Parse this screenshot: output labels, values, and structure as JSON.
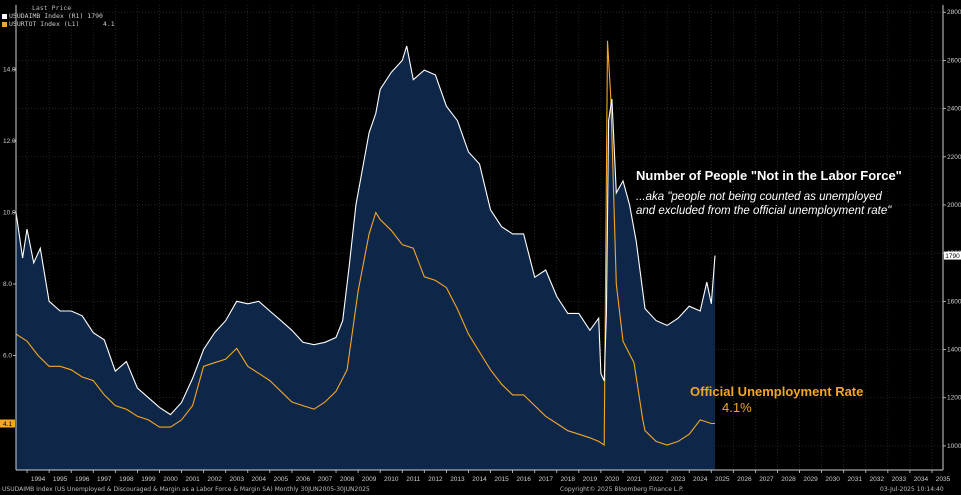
{
  "legend": {
    "header": "Last Price",
    "series": [
      {
        "label": "USUDAIMB Index (R1)",
        "value": "1790",
        "color": "#ffffff"
      },
      {
        "label": "USURTOT Index (L1)",
        "value": "4.1",
        "color": "#f5a623"
      }
    ]
  },
  "annotations": {
    "title": "Number of People \"Not in the Labor Force\"",
    "subtitle_line1": "...aka \"people not being counted as unemployed",
    "subtitle_line2": "and excluded from the official unemployment rate\"",
    "rate_label": "Official Unemployment Rate",
    "rate_value": "4.1%"
  },
  "footer": {
    "left": "USUDAIMB Index (US Unemployed & Discouraged & Margin as a Labor Force & Margin SA)  Monthly 30JUN2005-30JUN2025",
    "center": "Copyright© 2025 Bloomberg Finance L.P.",
    "right": "03-Jul-2025 10:14:40"
  },
  "chart_data": {
    "type": "line",
    "x_ticks": [
      "1994",
      "1995",
      "1996",
      "1997",
      "1998",
      "1999",
      "2000",
      "2001",
      "2002",
      "2003",
      "2004",
      "2005",
      "2006",
      "2007",
      "2008",
      "2009",
      "2010",
      "2011",
      "2012",
      "2013",
      "2014",
      "2015",
      "2016",
      "2017",
      "2018",
      "2019",
      "2020",
      "2021",
      "2022",
      "2023",
      "2024",
      "2025",
      "2026",
      "2027",
      "2028",
      "2029",
      "2030",
      "2031",
      "2032",
      "2033",
      "2034",
      "2035"
    ],
    "xlim": [
      1993.5,
      2035.5
    ],
    "left_axis": {
      "ticks": [
        "6.0",
        "8.0",
        "10.0",
        "12.0",
        "14.0"
      ],
      "ylim": [
        2.8,
        15.8
      ]
    },
    "right_axis": {
      "ticks": [
        "1000",
        "1200",
        "1400",
        "1600",
        "1800",
        "2000",
        "2200",
        "2400",
        "2600",
        "2800"
      ],
      "ylim": [
        900,
        2830
      ]
    },
    "series": [
      {
        "name": "USUDAIMB Index",
        "axis": "right",
        "color": "#ffffff",
        "fill": "#0e2748",
        "last_value": "1790",
        "points": [
          [
            1993.5,
            1970
          ],
          [
            1993.8,
            1780
          ],
          [
            1994.0,
            1900
          ],
          [
            1994.3,
            1760
          ],
          [
            1994.6,
            1820
          ],
          [
            1995.0,
            1600
          ],
          [
            1995.5,
            1560
          ],
          [
            1996.0,
            1560
          ],
          [
            1996.5,
            1540
          ],
          [
            1997.0,
            1470
          ],
          [
            1997.5,
            1440
          ],
          [
            1998.0,
            1310
          ],
          [
            1998.5,
            1350
          ],
          [
            1999.0,
            1240
          ],
          [
            1999.5,
            1200
          ],
          [
            2000.0,
            1160
          ],
          [
            2000.5,
            1130
          ],
          [
            2001.0,
            1180
          ],
          [
            2001.5,
            1280
          ],
          [
            2002.0,
            1400
          ],
          [
            2002.5,
            1470
          ],
          [
            2003.0,
            1520
          ],
          [
            2003.5,
            1600
          ],
          [
            2004.0,
            1590
          ],
          [
            2004.5,
            1600
          ],
          [
            2005.0,
            1560
          ],
          [
            2005.5,
            1520
          ],
          [
            2006.0,
            1480
          ],
          [
            2006.5,
            1430
          ],
          [
            2007.0,
            1420
          ],
          [
            2007.5,
            1430
          ],
          [
            2008.0,
            1450
          ],
          [
            2008.3,
            1520
          ],
          [
            2008.6,
            1750
          ],
          [
            2008.9,
            2000
          ],
          [
            2009.2,
            2150
          ],
          [
            2009.5,
            2300
          ],
          [
            2009.8,
            2380
          ],
          [
            2010.0,
            2480
          ],
          [
            2010.5,
            2550
          ],
          [
            2011.0,
            2600
          ],
          [
            2011.2,
            2660
          ],
          [
            2011.5,
            2520
          ],
          [
            2012.0,
            2560
          ],
          [
            2012.5,
            2540
          ],
          [
            2013.0,
            2410
          ],
          [
            2013.5,
            2350
          ],
          [
            2014.0,
            2220
          ],
          [
            2014.5,
            2170
          ],
          [
            2015.0,
            1980
          ],
          [
            2015.5,
            1910
          ],
          [
            2016.0,
            1880
          ],
          [
            2016.5,
            1880
          ],
          [
            2017.0,
            1700
          ],
          [
            2017.5,
            1730
          ],
          [
            2018.0,
            1620
          ],
          [
            2018.5,
            1550
          ],
          [
            2019.0,
            1550
          ],
          [
            2019.5,
            1480
          ],
          [
            2019.9,
            1530
          ],
          [
            2020.0,
            1300
          ],
          [
            2020.15,
            1270
          ],
          [
            2020.25,
            1550
          ],
          [
            2020.35,
            2350
          ],
          [
            2020.5,
            2440
          ],
          [
            2020.7,
            2050
          ],
          [
            2021.0,
            2100
          ],
          [
            2021.3,
            2000
          ],
          [
            2021.6,
            1850
          ],
          [
            2022.0,
            1570
          ],
          [
            2022.5,
            1520
          ],
          [
            2023.0,
            1500
          ],
          [
            2023.5,
            1530
          ],
          [
            2024.0,
            1580
          ],
          [
            2024.5,
            1560
          ],
          [
            2024.8,
            1680
          ],
          [
            2025.0,
            1590
          ],
          [
            2025.17,
            1790
          ]
        ]
      },
      {
        "name": "USURTOT Index",
        "axis": "left",
        "color": "#f5a623",
        "last_value": "4.1",
        "points": [
          [
            1993.5,
            6.6
          ],
          [
            1994.0,
            6.4
          ],
          [
            1994.5,
            6.0
          ],
          [
            1995.0,
            5.7
          ],
          [
            1995.5,
            5.7
          ],
          [
            1996.0,
            5.6
          ],
          [
            1996.5,
            5.4
          ],
          [
            1997.0,
            5.3
          ],
          [
            1997.5,
            4.9
          ],
          [
            1998.0,
            4.6
          ],
          [
            1998.5,
            4.5
          ],
          [
            1999.0,
            4.3
          ],
          [
            1999.5,
            4.2
          ],
          [
            2000.0,
            4.0
          ],
          [
            2000.5,
            4.0
          ],
          [
            2001.0,
            4.2
          ],
          [
            2001.5,
            4.6
          ],
          [
            2002.0,
            5.7
          ],
          [
            2002.5,
            5.8
          ],
          [
            2003.0,
            5.9
          ],
          [
            2003.5,
            6.2
          ],
          [
            2004.0,
            5.7
          ],
          [
            2004.5,
            5.5
          ],
          [
            2005.0,
            5.3
          ],
          [
            2005.5,
            5.0
          ],
          [
            2006.0,
            4.7
          ],
          [
            2006.5,
            4.6
          ],
          [
            2007.0,
            4.5
          ],
          [
            2007.5,
            4.7
          ],
          [
            2008.0,
            5.0
          ],
          [
            2008.5,
            5.6
          ],
          [
            2009.0,
            7.8
          ],
          [
            2009.5,
            9.4
          ],
          [
            2009.8,
            10.0
          ],
          [
            2010.0,
            9.8
          ],
          [
            2010.5,
            9.5
          ],
          [
            2011.0,
            9.1
          ],
          [
            2011.5,
            9.0
          ],
          [
            2012.0,
            8.2
          ],
          [
            2012.5,
            8.1
          ],
          [
            2013.0,
            7.9
          ],
          [
            2013.5,
            7.3
          ],
          [
            2014.0,
            6.6
          ],
          [
            2014.5,
            6.1
          ],
          [
            2015.0,
            5.6
          ],
          [
            2015.5,
            5.2
          ],
          [
            2016.0,
            4.9
          ],
          [
            2016.5,
            4.9
          ],
          [
            2017.0,
            4.6
          ],
          [
            2017.5,
            4.3
          ],
          [
            2018.0,
            4.1
          ],
          [
            2018.5,
            3.9
          ],
          [
            2019.0,
            3.8
          ],
          [
            2019.5,
            3.7
          ],
          [
            2019.9,
            3.6
          ],
          [
            2020.15,
            3.5
          ],
          [
            2020.3,
            14.8
          ],
          [
            2020.45,
            13.2
          ],
          [
            2020.7,
            8.0
          ],
          [
            2021.0,
            6.4
          ],
          [
            2021.5,
            5.8
          ],
          [
            2021.9,
            4.2
          ],
          [
            2022.0,
            3.9
          ],
          [
            2022.5,
            3.6
          ],
          [
            2023.0,
            3.5
          ],
          [
            2023.5,
            3.6
          ],
          [
            2024.0,
            3.8
          ],
          [
            2024.5,
            4.2
          ],
          [
            2025.0,
            4.1
          ],
          [
            2025.17,
            4.1
          ]
        ]
      }
    ]
  }
}
